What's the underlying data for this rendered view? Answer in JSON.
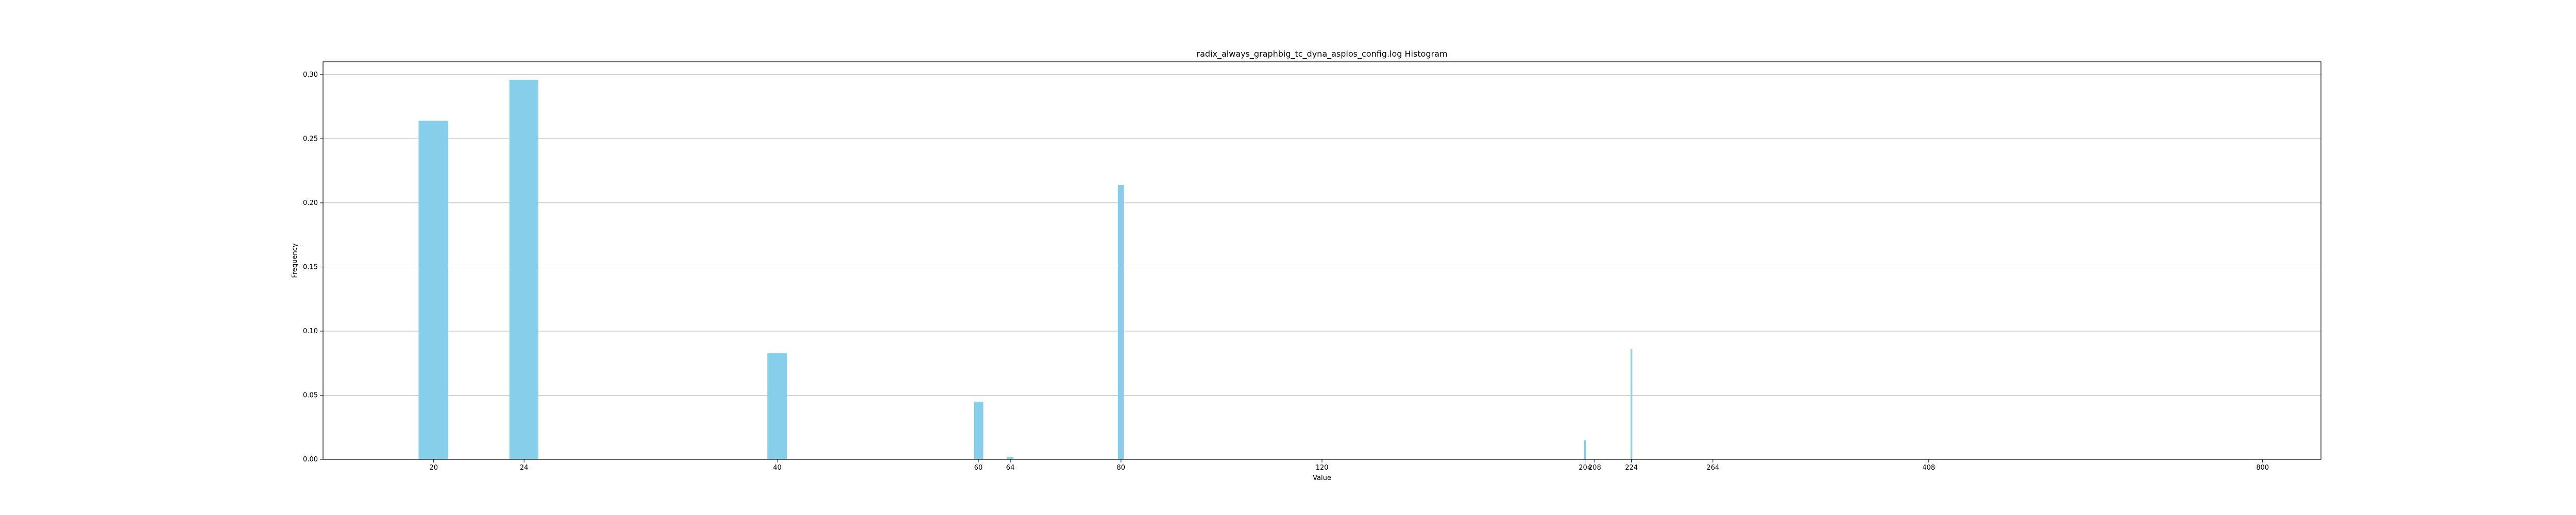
{
  "chart_data": {
    "type": "bar",
    "title": "radix_always_graphbig_tc_dyna_asplos_config.log Histogram",
    "xlabel": "Value",
    "ylabel": "Frequency",
    "x_scale": "log",
    "xlim": [
      16,
      900
    ],
    "ylim": [
      0,
      0.31
    ],
    "grid": "y",
    "bar_color": "#87CEEB",
    "x_ticks": [
      {
        "value": 20,
        "label": "20"
      },
      {
        "value": 24,
        "label": "24"
      },
      {
        "value": 40,
        "label": "40"
      },
      {
        "value": 60,
        "label": "60"
      },
      {
        "value": 64,
        "label": "64"
      },
      {
        "value": 80,
        "label": "80"
      },
      {
        "value": 120,
        "label": "120"
      },
      {
        "value": 204,
        "label": "204"
      },
      {
        "value": 208,
        "label": "208"
      },
      {
        "value": 224,
        "label": "224"
      },
      {
        "value": 264,
        "label": "264"
      },
      {
        "value": 408,
        "label": "408"
      },
      {
        "value": 800,
        "label": "800"
      }
    ],
    "y_ticks": [
      {
        "value": 0.0,
        "label": "0.00"
      },
      {
        "value": 0.05,
        "label": "0.05"
      },
      {
        "value": 0.1,
        "label": "0.10"
      },
      {
        "value": 0.15,
        "label": "0.15"
      },
      {
        "value": 0.2,
        "label": "0.20"
      },
      {
        "value": 0.25,
        "label": "0.25"
      },
      {
        "value": 0.3,
        "label": "0.30"
      }
    ],
    "bars": [
      {
        "x0": 19.4,
        "x1": 20.6,
        "value": 0.264
      },
      {
        "x0": 23.3,
        "x1": 24.7,
        "value": 0.296
      },
      {
        "x0": 39.2,
        "x1": 40.8,
        "value": 0.083
      },
      {
        "x0": 59.5,
        "x1": 60.6,
        "value": 0.045
      },
      {
        "x0": 63.6,
        "x1": 64.4,
        "value": 0.002
      },
      {
        "x0": 79.5,
        "x1": 80.5,
        "value": 0.214
      },
      {
        "x0": 203.6,
        "x1": 204.4,
        "value": 0.015
      },
      {
        "x0": 223.6,
        "x1": 224.4,
        "value": 0.086
      }
    ]
  }
}
